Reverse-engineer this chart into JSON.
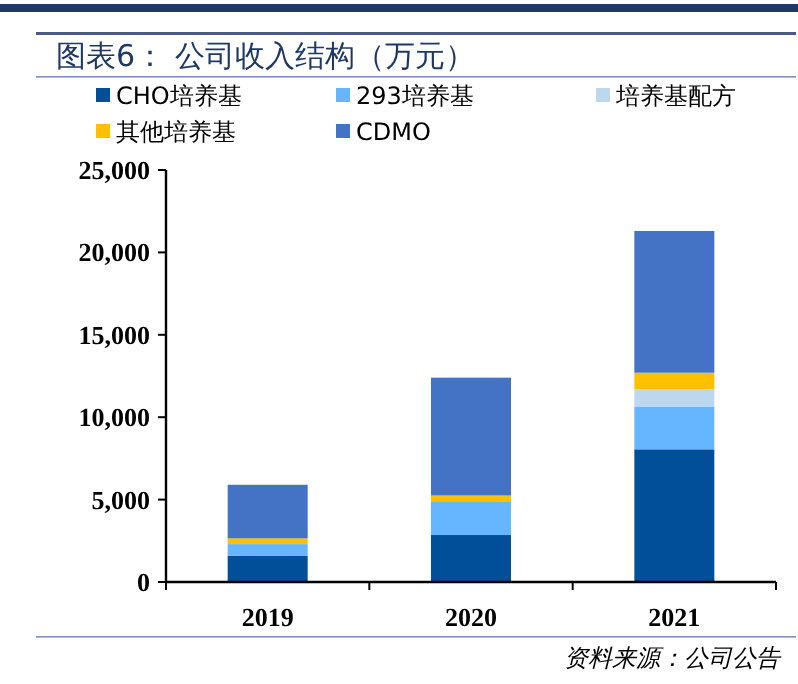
{
  "chart_data": {
    "type": "bar",
    "title": "图表6：  公司收入结构（万元）",
    "stacked": true,
    "legend": "top left",
    "categories": [
      "2019",
      "2020",
      "2021"
    ],
    "series": [
      {
        "name": "CHO培养基",
        "color": "#004f98",
        "values": [
          1600,
          2850,
          8050
        ]
      },
      {
        "name": "293培养基",
        "color": "#66b5ff",
        "values": [
          700,
          2050,
          2600
        ]
      },
      {
        "name": "培养基配方",
        "color": "#bdd7ee",
        "values": [
          0,
          0,
          1050
        ]
      },
      {
        "name": "其他培养基",
        "color": "#ffc000",
        "values": [
          350,
          350,
          1000
        ]
      },
      {
        "name": "CDMO",
        "color": "#4472c4",
        "values": [
          3250,
          7150,
          8600
        ]
      }
    ],
    "ylim": [
      0,
      25000
    ],
    "yticks": [
      {
        "value": 0,
        "label": "0"
      },
      {
        "value": 5000,
        "label": "5,000"
      },
      {
        "value": 10000,
        "label": "10,000"
      },
      {
        "value": 15000,
        "label": "15,000"
      },
      {
        "value": 20000,
        "label": "20,000"
      },
      {
        "value": 25000,
        "label": "25,000"
      }
    ],
    "annotations": [
      "资料来源：公司公告"
    ]
  }
}
